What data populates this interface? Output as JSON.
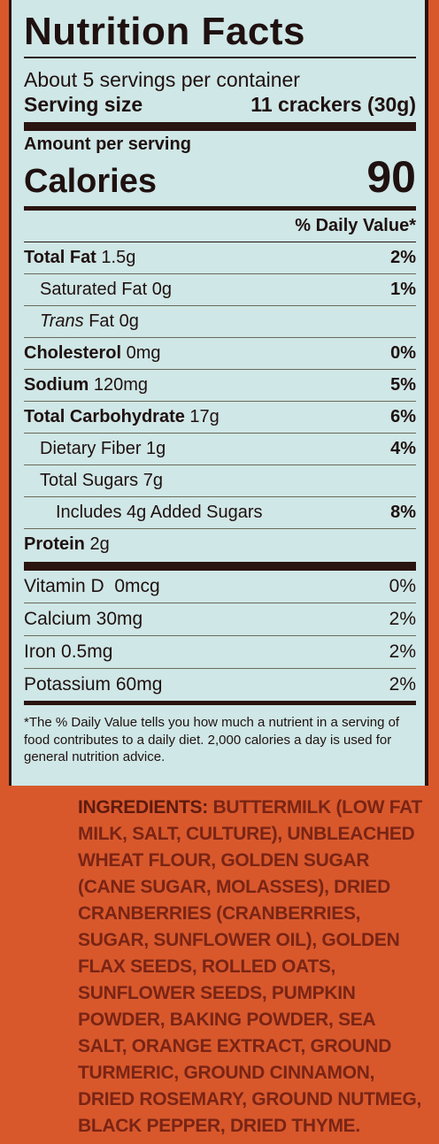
{
  "title": "Nutrition Facts",
  "servings_per_container": "About 5 servings per container",
  "serving_size_label": "Serving size",
  "serving_size_value": "11 crackers (30g)",
  "amount_per_serving": "Amount per serving",
  "calories_label": "Calories",
  "calories_value": "90",
  "dv_header": "% Daily Value*",
  "nutrients": [
    {
      "name": "Total Fat",
      "amount": " 1.5g",
      "dv": "2%"
    },
    {
      "name": "Saturated Fat",
      "amount": " 0g",
      "dv": "1%"
    },
    {
      "name": "Trans",
      "amount": " Fat 0g",
      "dv": ""
    },
    {
      "name": "Cholesterol",
      "amount": " 0mg",
      "dv": "0%"
    },
    {
      "name": "Sodium",
      "amount": " 120mg",
      "dv": "5%"
    },
    {
      "name": "Total Carbohydrate",
      "amount": " 17g",
      "dv": "6%"
    },
    {
      "name": "Dietary Fiber",
      "amount": " 1g",
      "dv": "4%"
    },
    {
      "name": "Total Sugars",
      "amount": " 7g",
      "dv": ""
    },
    {
      "name": "Includes 4g Added Sugars",
      "amount": "",
      "dv": "8%"
    },
    {
      "name": "Protein",
      "amount": " 2g",
      "dv": ""
    }
  ],
  "vitamins": [
    {
      "label": "Vitamin D  0mcg",
      "dv": "0%"
    },
    {
      "label": "Calcium 30mg",
      "dv": "2%"
    },
    {
      "label": "Iron 0.5mg",
      "dv": "2%"
    },
    {
      "label": "Potassium 60mg",
      "dv": "2%"
    }
  ],
  "footnote": "*The % Daily Value tells you how much a nutrient in a serving of food contributes to a daily diet. 2,000 calories a day is used for general nutrition advice.",
  "ingredients_label": "INGREDIENTS:",
  "ingredients_text": "BUTTERMILK (LOW FAT MILK, SALT, CULTURE), UNBLEACHED WHEAT FLOUR, GOLDEN SUGAR (CANE SUGAR, MOLASSES), DRIED CRANBERRIES (CRANBERRIES, SUGAR, SUNFLOWER OIL), GOLDEN FLAX SEEDS, ROLLED OATS, SUNFLOWER SEEDS, PUMPKIN POWDER, BAKING POWDER, SEA SALT, ORANGE EXTRACT, GROUND TURMERIC, GROUND CINNAMON, DRIED ROSEMARY, GROUND NUTMEG, BLACK PEPPER, DRIED THYME."
}
